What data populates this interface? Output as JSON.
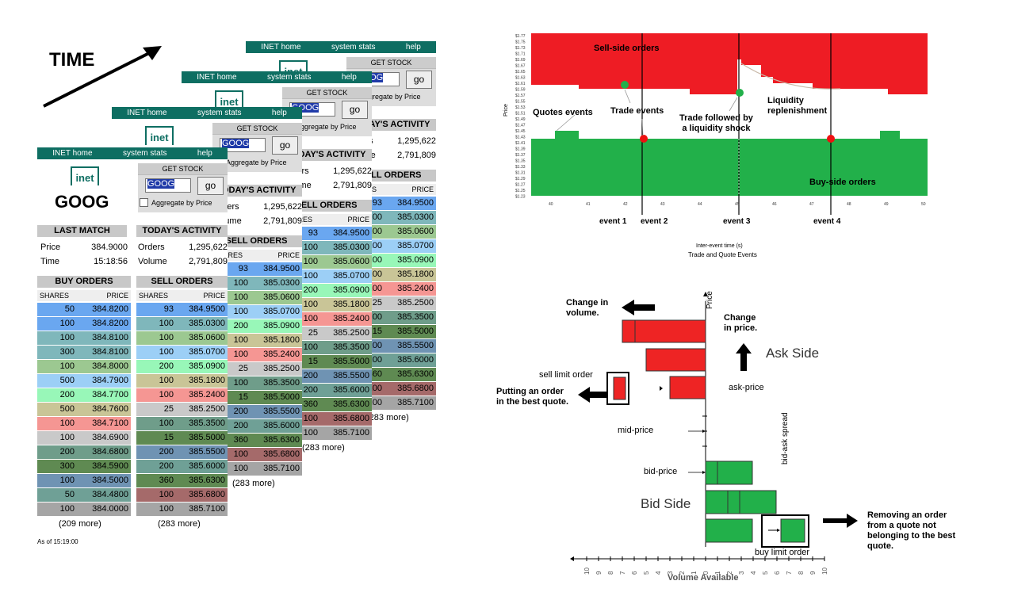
{
  "time_label": "TIME",
  "inet": {
    "nav": [
      "INET home",
      "system stats",
      "help"
    ],
    "logo": "inet",
    "get_stock": "GET STOCK",
    "symbol_value": "GOOG",
    "go": "go",
    "aggregate": "Aggregate by Price",
    "symbol": "GOOG",
    "last_match": {
      "title": "LAST MATCH",
      "price_label": "Price",
      "price": "384.9000",
      "time_label": "Time",
      "time": "15:18:56"
    },
    "activity": {
      "title": "TODAY'S ACTIVITY",
      "orders_label": "Orders",
      "orders": "1,295,622",
      "volume_label": "Volume",
      "volume": "2,791,809"
    },
    "buy": {
      "title": "BUY ORDERS",
      "col_shares": "SHARES",
      "col_price": "PRICE",
      "more": "(209 more)",
      "rows": [
        {
          "shares": "50",
          "price": "384.8200",
          "color": "#6aa7f0"
        },
        {
          "shares": "100",
          "price": "384.8200",
          "color": "#6aa7f0"
        },
        {
          "shares": "100",
          "price": "384.8100",
          "color": "#7fb7bb"
        },
        {
          "shares": "300",
          "price": "384.8100",
          "color": "#7fb7bb"
        },
        {
          "shares": "100",
          "price": "384.8000",
          "color": "#9cc891"
        },
        {
          "shares": "500",
          "price": "384.7900",
          "color": "#9ccff6"
        },
        {
          "shares": "200",
          "price": "384.7700",
          "color": "#98f7b8"
        },
        {
          "shares": "500",
          "price": "384.7600",
          "color": "#c9c597"
        },
        {
          "shares": "100",
          "price": "384.7100",
          "color": "#f59693"
        },
        {
          "shares": "100",
          "price": "384.6900",
          "color": "#c9c9c9"
        },
        {
          "shares": "200",
          "price": "384.6800",
          "color": "#6f9d8a"
        },
        {
          "shares": "300",
          "price": "384.5900",
          "color": "#5f8a52"
        },
        {
          "shares": "100",
          "price": "384.5000",
          "color": "#6f93b3"
        },
        {
          "shares": "50",
          "price": "384.4800",
          "color": "#6fa096"
        },
        {
          "shares": "100",
          "price": "384.0000",
          "color": "#a5a5a5"
        }
      ]
    },
    "sell": {
      "title": "SELL ORDERS",
      "col_shares": "SHARES",
      "col_price": "PRICE",
      "more": "(283 more)",
      "rows": [
        {
          "shares": "93",
          "price": "384.9500",
          "color": "#6aa7f0"
        },
        {
          "shares": "100",
          "price": "385.0300",
          "color": "#7fb7bb"
        },
        {
          "shares": "100",
          "price": "385.0600",
          "color": "#9cc891"
        },
        {
          "shares": "100",
          "price": "385.0700",
          "color": "#9ccff6"
        },
        {
          "shares": "200",
          "price": "385.0900",
          "color": "#98f7b8"
        },
        {
          "shares": "100",
          "price": "385.1800",
          "color": "#c9c597"
        },
        {
          "shares": "100",
          "price": "385.2400",
          "color": "#f59693"
        },
        {
          "shares": "25",
          "price": "385.2500",
          "color": "#c9c9c9"
        },
        {
          "shares": "100",
          "price": "385.3500",
          "color": "#6f9d8a"
        },
        {
          "shares": "15",
          "price": "385.5000",
          "color": "#5f8a52"
        },
        {
          "shares": "200",
          "price": "385.5500",
          "color": "#6f93b3"
        },
        {
          "shares": "200",
          "price": "385.6000",
          "color": "#6fa096"
        },
        {
          "shares": "360",
          "price": "385.6300",
          "color": "#5f8a52"
        },
        {
          "shares": "100",
          "price": "385.6800",
          "color": "#a56a6a"
        },
        {
          "shares": "100",
          "price": "385.7100",
          "color": "#a5a5a5"
        }
      ]
    },
    "as_of": "As of 15:19:00",
    "back_more": [
      "(283 more)",
      "3 more)",
      "more)"
    ],
    "partial_activity": "Y'S ACTIVITY",
    "partial_activity2": "'S ACTIVITY",
    "partial_activity3": "S ACTIVITY",
    "partial_orders": "L ORDERS",
    "partial_orders2": "ORDERS",
    "partial_aggregate": "gregate by Price",
    "partial_aggregate2": "gate by Price",
    "partial_aggregate3": "e by Price",
    "partial_volume_label": "e"
  },
  "lob_chart": {
    "annotations": {
      "sell_side": "Sell-side orders",
      "buy_side": "Buy-side orders",
      "quotes_events": "Quotes events",
      "trade_events": "Trade events",
      "trade_shock": "Trade followed by\na liquidity shock",
      "liquidity": "Liquidity\nreplenishment",
      "event1": "event 1",
      "event2": "event 2",
      "event3": "event 3",
      "event4": "event 4",
      "ylabel": "Price",
      "xlabel1": "Inter-event time (s)",
      "xlabel2": "Trade and Quote Events"
    },
    "colors": {
      "sell": "#ee1c24",
      "buy": "#22b04a",
      "sell_light": "#f3e6e6"
    }
  },
  "book_diagram": {
    "change_volume": "Change in\nvolume.",
    "change_price": "Change\nin price.",
    "price_axis": "Price",
    "ask_side": "Ask Side",
    "bid_side": "Bid Side",
    "sell_limit": "sell limit order",
    "putting_order": "Putting an order\nin the best quote.",
    "ask_price": "ask-price",
    "mid_price": "mid-price",
    "bid_price": "bid-price",
    "spread": "bid-ask spread",
    "removing": "Removing an order\nfrom a quote not\nbelonging to the best\nquote.",
    "buy_limit": "buy limit order",
    "volume_axis": "Volume Available",
    "ticks_left": [
      "10",
      "9",
      "8",
      "7",
      "6",
      "5",
      "4",
      "3",
      "2",
      "1",
      "0"
    ],
    "ticks_right": [
      "0",
      "1",
      "2",
      "3",
      "4",
      "5",
      "6",
      "7",
      "8",
      "9",
      "10"
    ],
    "colors": {
      "ask": "#ee2424",
      "bid": "#22b04a"
    }
  }
}
